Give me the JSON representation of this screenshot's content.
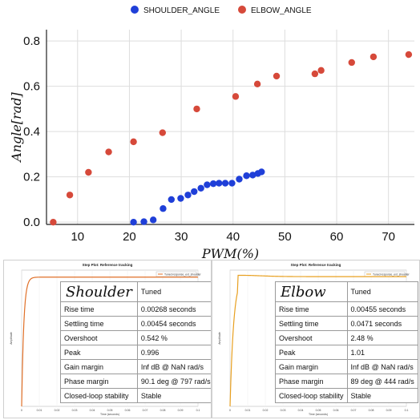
{
  "chart_data": [
    {
      "type": "scatter",
      "title": "",
      "xlabel": "PWM(%)",
      "ylabel": "Angle[rad]",
      "xlim": [
        4,
        75
      ],
      "ylim": [
        -0.01,
        0.85
      ],
      "xticks": [
        10,
        20,
        30,
        40,
        50,
        60,
        70
      ],
      "yticks": [
        0.0,
        0.2,
        0.4,
        0.6,
        0.8
      ],
      "ytick_labels": [
        "0.0",
        "0.2",
        "0.4",
        "0.6",
        "0.8"
      ],
      "grid": true,
      "legend_position": "top-center",
      "series": [
        {
          "name": "SHOULDER_ANGLE",
          "color": "#1f3fd8",
          "x": [
            20.8,
            22.8,
            24.6,
            26.5,
            28.1,
            29.9,
            31.3,
            32.5,
            33.8,
            35.0,
            36.2,
            37.3,
            38.5,
            39.8,
            41.2,
            42.6,
            43.8,
            44.8,
            45.5
          ],
          "y": [
            0.0,
            0.002,
            0.01,
            0.06,
            0.1,
            0.105,
            0.12,
            0.135,
            0.15,
            0.165,
            0.17,
            0.172,
            0.172,
            0.172,
            0.19,
            0.205,
            0.208,
            0.215,
            0.222
          ]
        },
        {
          "name": "ELBOW_ANGLE",
          "color": "#d6493a",
          "x": [
            5.3,
            8.5,
            12.1,
            16.0,
            20.8,
            26.4,
            33.0,
            40.5,
            44.7,
            48.4,
            55.8,
            57.0,
            62.9,
            67.1,
            73.9
          ],
          "y": [
            0.0,
            0.12,
            0.22,
            0.31,
            0.355,
            0.395,
            0.5,
            0.555,
            0.61,
            0.645,
            0.655,
            0.67,
            0.705,
            0.73,
            0.74
          ]
        }
      ]
    },
    {
      "type": "line",
      "title": "Step Plot: Reference tracking",
      "legend": [
        "Tuned response_ext_shoulder"
      ],
      "color": "#e07028",
      "xlabel": "Time (seconds)",
      "ylabel": "Amplitude",
      "xticks": [
        "0",
        "0.01",
        "0.02",
        "0.03",
        "0.04",
        "0.05",
        "0.06",
        "0.07",
        "0.08",
        "0.09",
        "0.1"
      ],
      "xlim": [
        0,
        0.1
      ],
      "ylim": [
        0,
        1.05
      ],
      "rise_time": 0.00268,
      "settling_time": 0.00454,
      "peak": 0.996
    },
    {
      "type": "line",
      "title": "Step Plot: Reference tracking",
      "legend": [
        "Tuned response_ext_shoulder"
      ],
      "color": "#e8a020",
      "xlabel": "Time (seconds)",
      "ylabel": "Amplitude",
      "xticks": [
        "0",
        "0.01",
        "0.02",
        "0.03",
        "0.04",
        "0.05",
        "0.06",
        "0.07",
        "0.08",
        "0.09",
        "0.1"
      ],
      "xlim": [
        0,
        0.1
      ],
      "ylim": [
        0,
        1.05
      ],
      "rise_time": 0.00455,
      "settling_time": 0.0471,
      "peak": 1.01
    }
  ],
  "tables": [
    {
      "name": "Shoulder",
      "col": "Tuned",
      "rows": [
        [
          "Rise time",
          "0.00268 seconds"
        ],
        [
          "Settling time",
          "0.00454 seconds"
        ],
        [
          "Overshoot",
          "0.542 %"
        ],
        [
          "Peak",
          "0.996"
        ],
        [
          "Gain margin",
          "Inf dB @ NaN rad/s"
        ],
        [
          "Phase margin",
          "90.1 deg @ 797 rad/s"
        ],
        [
          "Closed-loop stability",
          "Stable"
        ]
      ]
    },
    {
      "name": "Elbow",
      "col": "Tuned",
      "rows": [
        [
          "Rise time",
          "0.00455 seconds"
        ],
        [
          "Settling time",
          "0.0471 seconds"
        ],
        [
          "Overshoot",
          "2.48 %"
        ],
        [
          "Peak",
          "1.01"
        ],
        [
          "Gain margin",
          "Inf dB @ NaN rad/s"
        ],
        [
          "Phase margin",
          "89 deg @ 444 rad/s"
        ],
        [
          "Closed-loop stability",
          "Stable"
        ]
      ]
    }
  ]
}
